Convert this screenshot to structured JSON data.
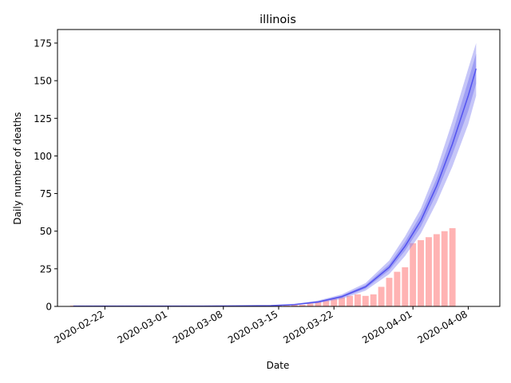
{
  "chart_data": {
    "type": "bar",
    "title": "illinois",
    "xlabel": "Date",
    "ylabel": "Daily number of deaths",
    "x_axis_type": "date",
    "xlim": [
      "2020-02-16",
      "2020-04-12"
    ],
    "ylim": [
      0,
      184
    ],
    "xticks": [
      "2020-02-22",
      "2020-03-01",
      "2020-03-08",
      "2020-03-15",
      "2020-03-22",
      "2020-04-01",
      "2020-04-08"
    ],
    "yticks": [
      0,
      25,
      50,
      75,
      100,
      125,
      150,
      175
    ],
    "grid": false,
    "legend": "none",
    "bars": {
      "color": "#ffb3b3",
      "dates": [
        "2020-02-18",
        "2020-02-19",
        "2020-02-20",
        "2020-02-21",
        "2020-02-22",
        "2020-02-23",
        "2020-02-24",
        "2020-02-25",
        "2020-02-26",
        "2020-02-27",
        "2020-02-28",
        "2020-02-29",
        "2020-03-01",
        "2020-03-02",
        "2020-03-03",
        "2020-03-04",
        "2020-03-05",
        "2020-03-06",
        "2020-03-07",
        "2020-03-08",
        "2020-03-09",
        "2020-03-10",
        "2020-03-11",
        "2020-03-12",
        "2020-03-13",
        "2020-03-14",
        "2020-03-15",
        "2020-03-16",
        "2020-03-17",
        "2020-03-18",
        "2020-03-19",
        "2020-03-20",
        "2020-03-21",
        "2020-03-22",
        "2020-03-23",
        "2020-03-24",
        "2020-03-25",
        "2020-03-26",
        "2020-03-27",
        "2020-03-28",
        "2020-03-29",
        "2020-03-30",
        "2020-03-31",
        "2020-04-01",
        "2020-04-02",
        "2020-04-03",
        "2020-04-04",
        "2020-04-05",
        "2020-04-06"
      ],
      "values": [
        0,
        0,
        0,
        0,
        0,
        0,
        0,
        0,
        0,
        0,
        0,
        0,
        0,
        0,
        0,
        0,
        0,
        0,
        0,
        0,
        0,
        0,
        0,
        0,
        0,
        0,
        0,
        0,
        1,
        1,
        2,
        3,
        4,
        5,
        6,
        7,
        8,
        7,
        8,
        13,
        19,
        23,
        26,
        42,
        44,
        46,
        48,
        50,
        52
      ]
    },
    "model": {
      "name": "",
      "line_color": "#4040ee",
      "band_color": "#8080f0",
      "dates": [
        "2020-02-18",
        "2020-02-23",
        "2020-02-28",
        "2020-03-04",
        "2020-03-09",
        "2020-03-14",
        "2020-03-17",
        "2020-03-20",
        "2020-03-23",
        "2020-03-26",
        "2020-03-29",
        "2020-03-31",
        "2020-04-02",
        "2020-04-04",
        "2020-04-06",
        "2020-04-08",
        "2020-04-09"
      ],
      "mean": [
        0.2,
        0.2,
        0.2,
        0.2,
        0.3,
        0.5,
        1.2,
        3,
        6.5,
        13,
        26,
        40,
        57,
        80,
        108,
        140,
        158
      ],
      "inner_low": [
        0.1,
        0.1,
        0.1,
        0.1,
        0.2,
        0.4,
        1,
        2.6,
        5.8,
        11.8,
        24,
        37,
        53,
        75,
        101,
        130,
        148
      ],
      "inner_high": [
        0.3,
        0.3,
        0.3,
        0.3,
        0.4,
        0.6,
        1.4,
        3.4,
        7.2,
        14.2,
        28,
        43,
        61,
        85,
        115,
        150,
        168
      ],
      "outer_low": [
        0,
        0,
        0,
        0,
        0.1,
        0.3,
        0.8,
        2.2,
        5,
        10.5,
        21.5,
        33.5,
        48.5,
        69,
        93,
        121,
        140
      ],
      "outer_high": [
        0.4,
        0.4,
        0.4,
        0.4,
        0.5,
        0.8,
        1.7,
        3.9,
        8,
        15.5,
        30.5,
        46.5,
        65,
        91,
        123,
        158,
        175
      ]
    }
  }
}
